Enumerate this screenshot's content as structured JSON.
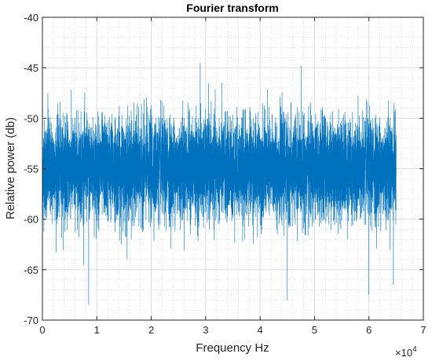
{
  "chart_data": {
    "type": "line",
    "title": "Fourier transform",
    "xlabel": "Frequency Hz",
    "ylabel": "Relative power (db)",
    "x_exponent_label": "×10",
    "x_exponent_power": "4",
    "xlim": [
      0,
      7
    ],
    "ylim": [
      -70,
      -40
    ],
    "x_ticks": [
      0,
      1,
      2,
      3,
      4,
      5,
      6,
      7
    ],
    "y_ticks": [
      -70,
      -65,
      -60,
      -55,
      -50,
      -45,
      -40
    ],
    "x_tick_labels": [
      "0",
      "1",
      "2",
      "3",
      "4",
      "5",
      "6",
      "7"
    ],
    "y_tick_labels": [
      "-70",
      "-65",
      "-60",
      "-55",
      "-50",
      "-45",
      "-40"
    ],
    "grid": true,
    "minor_grid": true,
    "series": [
      {
        "color": "#0072BD",
        "x_range": [
          0,
          6.5
        ],
        "noise_band": {
          "mean": -55,
          "typical_min": -60,
          "typical_max": -50
        },
        "extremes": [
          {
            "x": 2.9,
            "y": -44.5
          },
          {
            "x": 0.85,
            "y": -68.5
          },
          {
            "x": 4.5,
            "y": -68
          },
          {
            "x": 6.0,
            "y": -67.5
          },
          {
            "x": 0.1,
            "y": -47.5
          },
          {
            "x": 6.45,
            "y": -66.5
          }
        ]
      }
    ]
  }
}
